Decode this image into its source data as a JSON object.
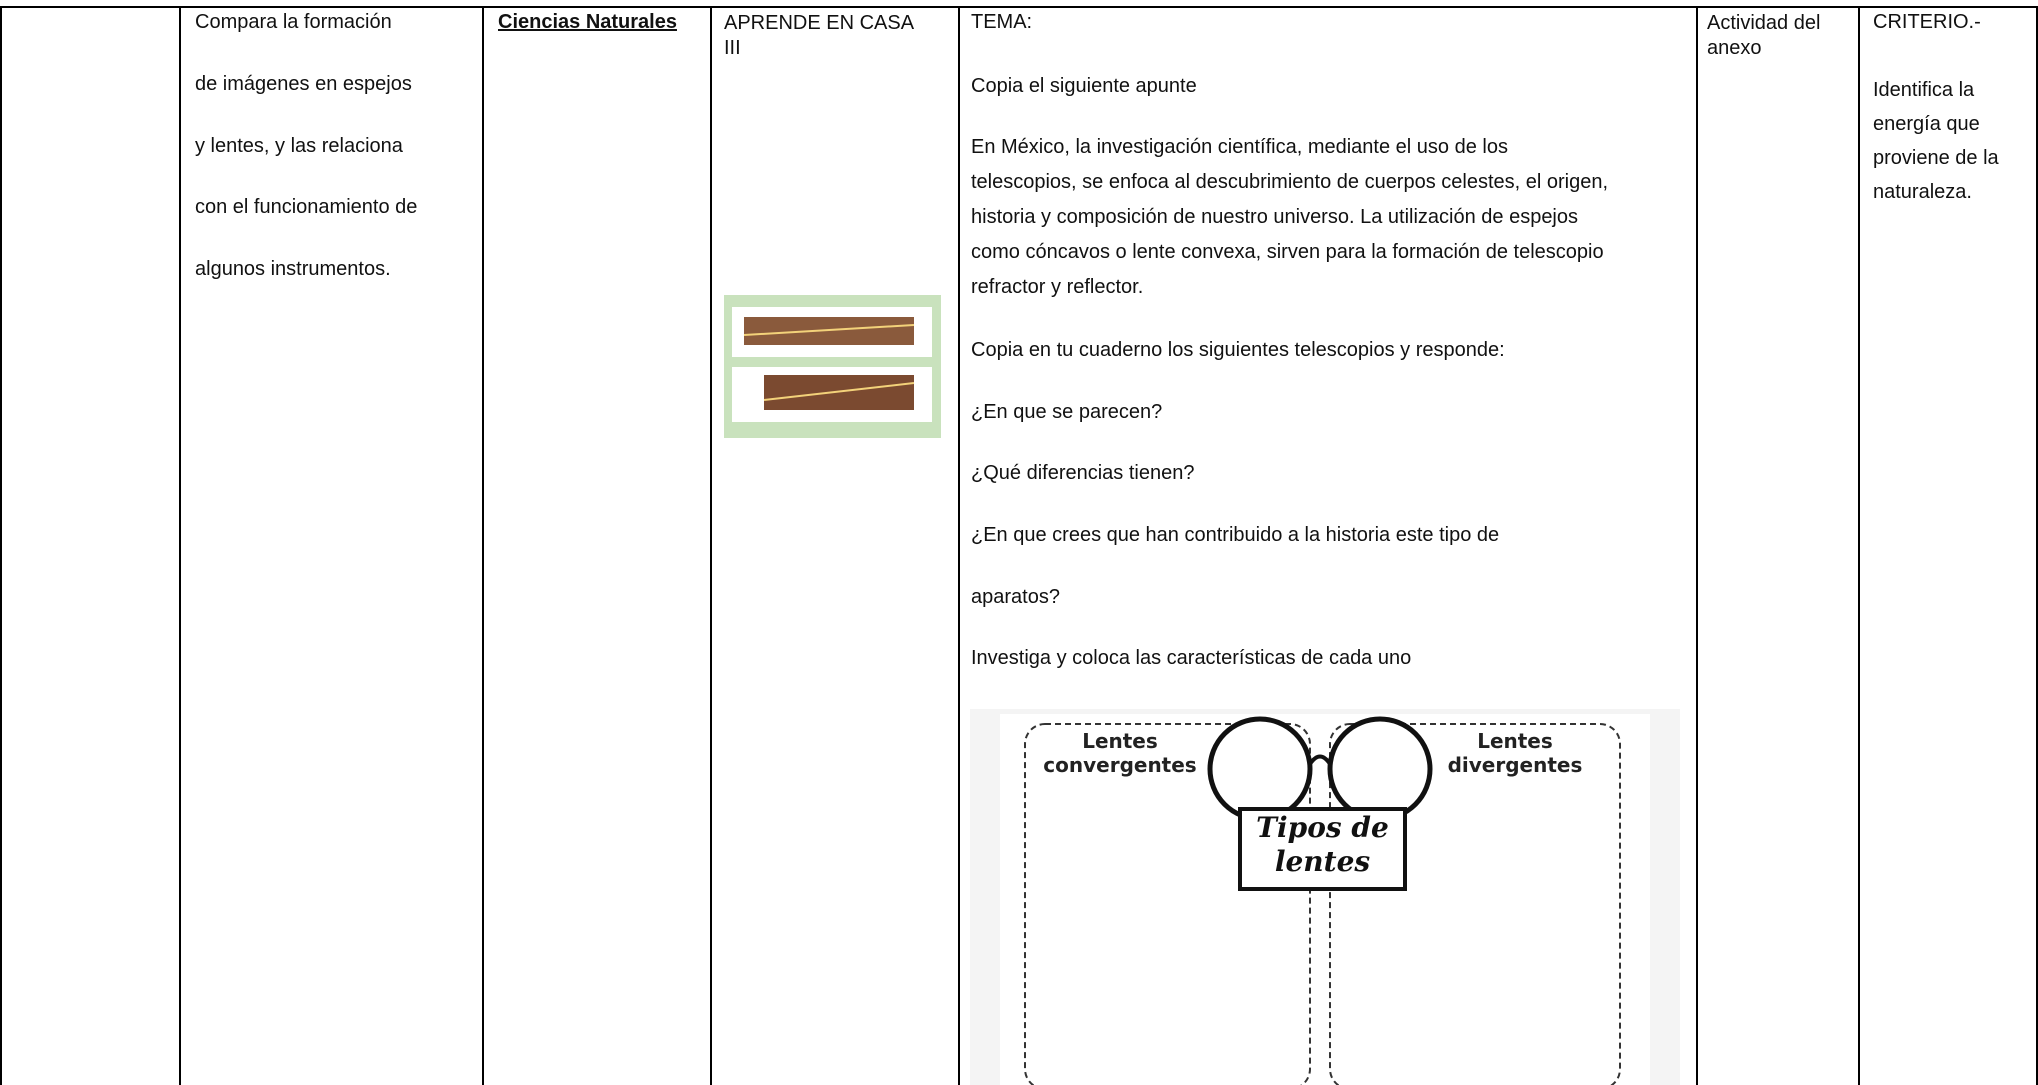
{
  "objective": {
    "lines": [
      "Compara la formación",
      "de imágenes en espejos",
      "y lentes, y las relaciona",
      "con el funcionamiento de",
      "algunos instrumentos."
    ]
  },
  "subject": "Ciencias Naturales",
  "program": "APRENDE EN CASA III",
  "content": {
    "heading": "TEMA:",
    "intro": "Copia el siguiente apunte",
    "paragraph": [
      "En México, la investigación científica, mediante el uso de los",
      "telescopios, se enfoca al descubrimiento de cuerpos celestes, el origen,",
      "historia y composición de nuestro universo. La utilización de espejos",
      "como cóncavos o lente convexa, sirven para la formación de telescopio",
      "refractor y reflector."
    ],
    "instruction": "Copia en tu cuaderno los siguientes telescopios y responde:",
    "questions": [
      "¿En que se parecen?",
      "¿Qué diferencias tienen?",
      "¿En que crees que han contribuido a la historia este tipo de",
      "aparatos?"
    ],
    "task": "Investiga y coloca las características de cada uno",
    "worksheet": {
      "left": "Lentes convergentes",
      "right": "Lentes divergentes",
      "title": "Tipos de lentes"
    }
  },
  "activity": "Actividad del anexo",
  "criterion": {
    "label": "CRITERIO.-",
    "text": "Identifica la energía que proviene de la naturaleza."
  }
}
